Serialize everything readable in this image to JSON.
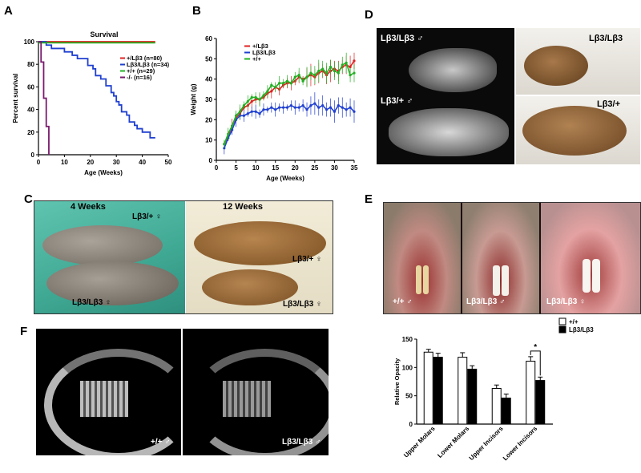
{
  "panels": {
    "A": {
      "letter": "A"
    },
    "B": {
      "letter": "B"
    },
    "C": {
      "letter": "C",
      "label_4wk": "4 Weeks",
      "label_12wk": "12 Weeks",
      "het_label_left": "Lβ3/+ ♀",
      "hom_label_left": "Lβ3/Lβ3 ♀",
      "het_label_right": "Lβ3/+ ♀",
      "hom_label_right": "Lβ3/Lβ3 ♀"
    },
    "D": {
      "letter": "D",
      "xray_hom": "Lβ3/Lβ3 ♂",
      "xray_het": "Lβ3/+ ♂",
      "photo_hom": "Lβ3/Lβ3",
      "photo_het": "Lβ3/+"
    },
    "E": {
      "letter": "E",
      "labels": [
        "+/+ ♂",
        "Lβ3/Lβ3 ♂",
        "Lβ3/Lβ3 ♀"
      ]
    },
    "F": {
      "letter": "F",
      "left": "+/+ ♂",
      "right": "Lβ3/Lβ3 ♂"
    }
  },
  "chart_data": [
    {
      "id": "A",
      "type": "line",
      "title": "Survival",
      "xlabel": "Age (Weeks)",
      "ylabel": "Percent survival",
      "xlim": [
        0,
        50
      ],
      "ylim": [
        0,
        100
      ],
      "xticks": [
        0,
        10,
        20,
        30,
        40,
        50
      ],
      "yticks": [
        0,
        20,
        40,
        60,
        80,
        100
      ],
      "legend_position": "right",
      "series": [
        {
          "name": "+/Lβ3 (n=80)",
          "color": "#e02020",
          "x": [
            0,
            45
          ],
          "y": [
            100,
            100
          ]
        },
        {
          "name": "Lβ3/Lβ3 (n=34)",
          "color": "#1f3fd0",
          "x": [
            0,
            3,
            3,
            5,
            5,
            10,
            10,
            13,
            13,
            15,
            15,
            19,
            19,
            21,
            21,
            22,
            22,
            24,
            24,
            26,
            26,
            28,
            28,
            29,
            29,
            30,
            30,
            31,
            31,
            32,
            32,
            34,
            34,
            35,
            35,
            37,
            37,
            38,
            38,
            40,
            40,
            43,
            43,
            45
          ],
          "y": [
            100,
            100,
            97,
            97,
            94,
            94,
            91,
            91,
            88,
            88,
            85,
            85,
            79,
            79,
            76,
            76,
            70,
            70,
            67,
            67,
            61,
            61,
            55,
            55,
            52,
            52,
            47,
            47,
            44,
            44,
            38,
            38,
            35,
            35,
            29,
            29,
            26,
            26,
            23,
            23,
            20,
            20,
            15,
            15
          ]
        },
        {
          "name": "+/+ (n=29)",
          "color": "#22b022",
          "x": [
            0,
            45
          ],
          "y": [
            99,
            99
          ]
        },
        {
          "name": "-/- (n=16)",
          "color": "#7a1a6e",
          "x": [
            0,
            1,
            1,
            2,
            2,
            3,
            3,
            4,
            4
          ],
          "y": [
            100,
            100,
            82,
            82,
            50,
            50,
            25,
            25,
            0
          ]
        }
      ]
    },
    {
      "id": "B",
      "type": "line",
      "xlabel": "Age (Weeks)",
      "ylabel": "Weight (g)",
      "xlim": [
        0,
        35
      ],
      "ylim": [
        0,
        60
      ],
      "xticks": [
        0,
        5,
        10,
        15,
        20,
        25,
        30,
        35
      ],
      "yticks": [
        0,
        10,
        20,
        30,
        40,
        50,
        60
      ],
      "legend_position": "top-left",
      "x": [
        2,
        3,
        4,
        5,
        6,
        7,
        8,
        9,
        10,
        11,
        12,
        13,
        14,
        15,
        16,
        17,
        18,
        19,
        20,
        21,
        22,
        23,
        24,
        25,
        26,
        27,
        28,
        29,
        30,
        31,
        32,
        33,
        34,
        35
      ],
      "series": [
        {
          "name": "+/Lβ3",
          "color": "#e02020",
          "values": [
            8,
            12,
            17,
            21,
            23,
            26,
            27,
            29,
            30,
            30,
            31,
            33,
            34,
            36,
            35,
            37,
            38,
            38,
            39,
            41,
            40,
            41,
            42,
            41,
            43,
            44,
            42,
            44,
            45,
            44,
            46,
            47,
            46,
            49
          ]
        },
        {
          "name": "Lβ3/Lβ3",
          "color": "#1f3fd0",
          "values": [
            6,
            11,
            15,
            20,
            22,
            22,
            23,
            24,
            24,
            23,
            25,
            25,
            26,
            25,
            26,
            26,
            26,
            27,
            26,
            26,
            27,
            25,
            27,
            28,
            26,
            27,
            25,
            26,
            24,
            27,
            26,
            25,
            26,
            24
          ]
        },
        {
          "name": "+/+",
          "color": "#22b022",
          "values": [
            8,
            13,
            17,
            22,
            24,
            27,
            29,
            31,
            31,
            30,
            32,
            34,
            37,
            36,
            38,
            38,
            39,
            38,
            41,
            42,
            39,
            41,
            43,
            42,
            44,
            45,
            43,
            46,
            44,
            43,
            47,
            48,
            42,
            43
          ]
        }
      ]
    },
    {
      "id": "E-quant",
      "type": "bar",
      "ylabel": "Relative Opacity",
      "ylim": [
        0,
        150
      ],
      "yticks": [
        0,
        50,
        100,
        150
      ],
      "categories": [
        "Upper Molars",
        "Lower Molars",
        "Upper Incisors",
        "Lower Incisors"
      ],
      "legend_position": "top-right",
      "significance": "*",
      "series": [
        {
          "name": "+/+",
          "color": "#ffffff",
          "values": [
            127,
            118,
            63,
            111
          ],
          "errors": [
            5,
            8,
            6,
            8
          ]
        },
        {
          "name": "Lβ3/Lβ3",
          "color": "#000000",
          "values": [
            118,
            97,
            46,
            77
          ],
          "errors": [
            7,
            6,
            7,
            6
          ]
        }
      ]
    }
  ]
}
